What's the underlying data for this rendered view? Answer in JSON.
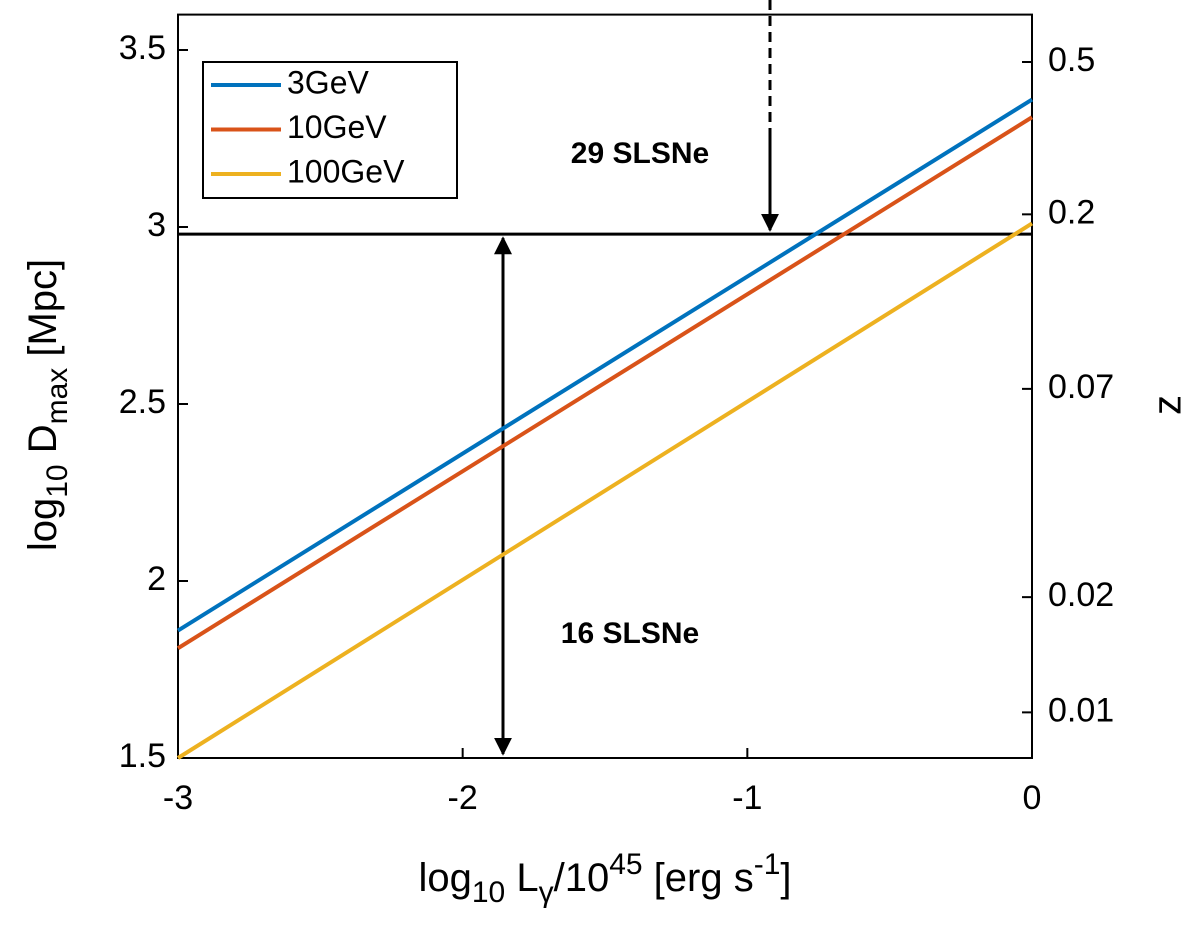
{
  "chart_data": {
    "type": "line",
    "x_label": [
      "log",
      "10",
      " L",
      "γ",
      "/10",
      "45",
      " [erg s",
      "-1",
      "]"
    ],
    "y_label": [
      "log",
      "10",
      " D",
      "max",
      " [Mpc]"
    ],
    "y2_label": "z",
    "x": [
      -3,
      0
    ],
    "series": [
      {
        "name": "3GeV",
        "color": "#0072bd",
        "values": [
          1.86,
          3.36
        ]
      },
      {
        "name": "10GeV",
        "color": "#d95319",
        "values": [
          1.81,
          3.31
        ]
      },
      {
        "name": "100GeV",
        "color": "#edb120",
        "values": [
          1.5,
          3.01
        ]
      }
    ],
    "hline": 2.98,
    "annotations": [
      "29 SLSNe",
      "16 SLSNe"
    ],
    "xlim": [
      -3,
      0
    ],
    "xticks": [
      -3,
      -2,
      -1,
      0
    ],
    "ylim": [
      1.5,
      3.6
    ],
    "yticks": [
      1.5,
      2,
      2.5,
      3,
      3.5
    ],
    "y2lim": [
      0.0076,
      0.665
    ],
    "y2log": true,
    "y2ticks": [
      0.01,
      0.02,
      0.07,
      0.2,
      0.5
    ],
    "legend": "upper left",
    "grid": false
  }
}
